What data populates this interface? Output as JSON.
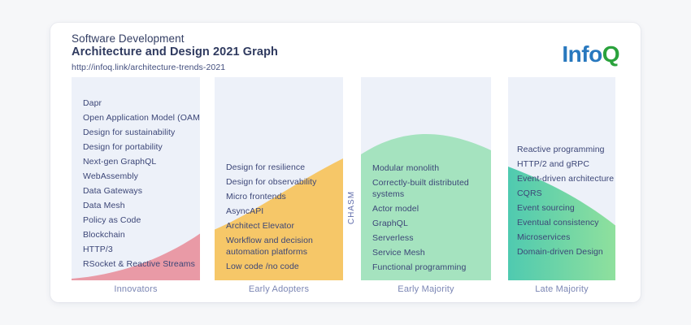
{
  "header": {
    "title_line1": "Software Development",
    "title_line2": "Architecture and Design 2021 Graph",
    "url": "http://infoq.link/architecture-trends-2021",
    "logo": {
      "part_blue": "Info",
      "part_green": "Q"
    }
  },
  "chasm_label": "CHASM",
  "columns": [
    {
      "label": "Innovators",
      "color": "#e99aa6",
      "items": [
        "Dapr",
        "Open Application Model (OAM)",
        "Design for sustainability",
        "Design for portability",
        "Next-gen GraphQL",
        "WebAssembly",
        "Data Gateways",
        "Data Mesh",
        "Policy as Code",
        "Blockchain",
        "HTTP/3",
        "RSocket & Reactive Streams"
      ]
    },
    {
      "label": "Early Adopters",
      "color": "#f6c768",
      "items": [
        "Design for resilience",
        "Design for observability",
        "Micro frontends",
        "AsyncAPI",
        "Architect Elevator",
        "Workflow and decision\nautomation platforms",
        "Low code /no code"
      ]
    },
    {
      "label": "Early Majority",
      "color": "#a5e3bf",
      "items": [
        "Modular monolith",
        "Correctly-built distributed\nsystems",
        "Actor model",
        "GraphQL",
        "Serverless",
        "Service Mesh",
        "Functional programming"
      ]
    },
    {
      "label": "Late Majority",
      "color_start": "#4fcab0",
      "color_end": "#8fe09d",
      "items": [
        "Reactive programming",
        "HTTP/2 and gRPC",
        "Event-driven architecture",
        "CQRS",
        "Event sourcing",
        "Eventual consistency",
        "Microservices",
        "Domain-driven Design"
      ]
    }
  ],
  "colors": {
    "page_background": "#f6f7f9",
    "card_background": "#ffffff",
    "column_background": "#edf1f9",
    "item_text": "#3c4677",
    "phase_label_text": "#7b86b4",
    "title_text": "#2f3a5f",
    "logo_blue": "#2878be",
    "logo_green": "#2aa23c"
  },
  "chart_data": {
    "type": "area",
    "title": "Software Development Architecture and Design 2021 Graph",
    "subtitle": "http://infoq.link/architecture-trends-2021",
    "categories": [
      "Innovators",
      "Early Adopters",
      "Early Majority",
      "Late Majority"
    ],
    "chasm": "CHASM label sits vertically in the gap between Early Adopters and Early Majority",
    "axes": "no numeric axes; qualitative technology-adoption bell curve filled under each phase column",
    "curve_relative_fill_heights": {
      "innovators_start": 0.0,
      "innovators_end": 0.23,
      "early_adopters_start": 0.25,
      "early_adopters_end": 0.6,
      "early_majority_start": 0.62,
      "early_majority_peak": 0.72,
      "early_majority_end": 0.64,
      "late_majority_start": 0.56,
      "late_majority_end": 0.27
    },
    "series": [
      {
        "name": "Innovators",
        "color": "#e99aa6",
        "items": [
          "Dapr",
          "Open Application Model (OAM)",
          "Design for sustainability",
          "Design for portability",
          "Next-gen GraphQL",
          "WebAssembly",
          "Data Gateways",
          "Data Mesh",
          "Policy as Code",
          "Blockchain",
          "HTTP/3",
          "RSocket & Reactive Streams"
        ]
      },
      {
        "name": "Early Adopters",
        "color": "#f6c768",
        "items": [
          "Design for resilience",
          "Design for observability",
          "Micro frontends",
          "AsyncAPI",
          "Architect Elevator",
          "Workflow and decision automation platforms",
          "Low code /no code"
        ]
      },
      {
        "name": "Early Majority",
        "color": "#a5e3bf",
        "items": [
          "Modular monolith",
          "Correctly-built distributed systems",
          "Actor model",
          "GraphQL",
          "Serverless",
          "Service Mesh",
          "Functional programming"
        ]
      },
      {
        "name": "Late Majority",
        "color": "#4fcab0 to #8fe09d gradient",
        "items": [
          "Reactive programming",
          "HTTP/2 and gRPC",
          "Event-driven architecture",
          "CQRS",
          "Event sourcing",
          "Eventual consistency",
          "Microservices",
          "Domain-driven Design"
        ]
      }
    ],
    "legend": "none"
  }
}
